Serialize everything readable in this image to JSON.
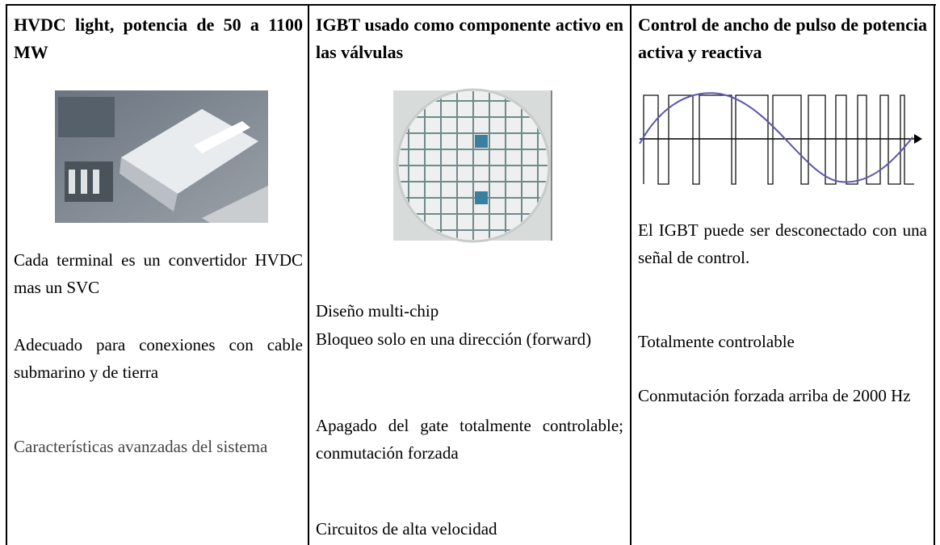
{
  "columns": [
    {
      "header": "HVDC light, potencia de 50 a 1100 MW",
      "items": [
        "Cada terminal es un convertidor HVDC mas un SVC",
        "Adecuado para conexiones con cable submarino y de tierra",
        "Características avanzadas del sistema"
      ]
    },
    {
      "header": "IGBT usado como componente activo en las válvulas",
      "items": [
        "Diseño multi-chip",
        "Bloqueo solo en una dirección (forward)",
        "Apagado del gate totalmente controlable; conmutación forzada",
        "Circuitos de alta velocidad"
      ]
    },
    {
      "header": "Control de ancho de pulso de potencia activa y reactiva",
      "items": [
        "El IGBT puede ser desconectado con una señal de control.",
        "Totalmente controlable",
        "Conmutación forzada arriba de 2000 Hz"
      ]
    }
  ]
}
